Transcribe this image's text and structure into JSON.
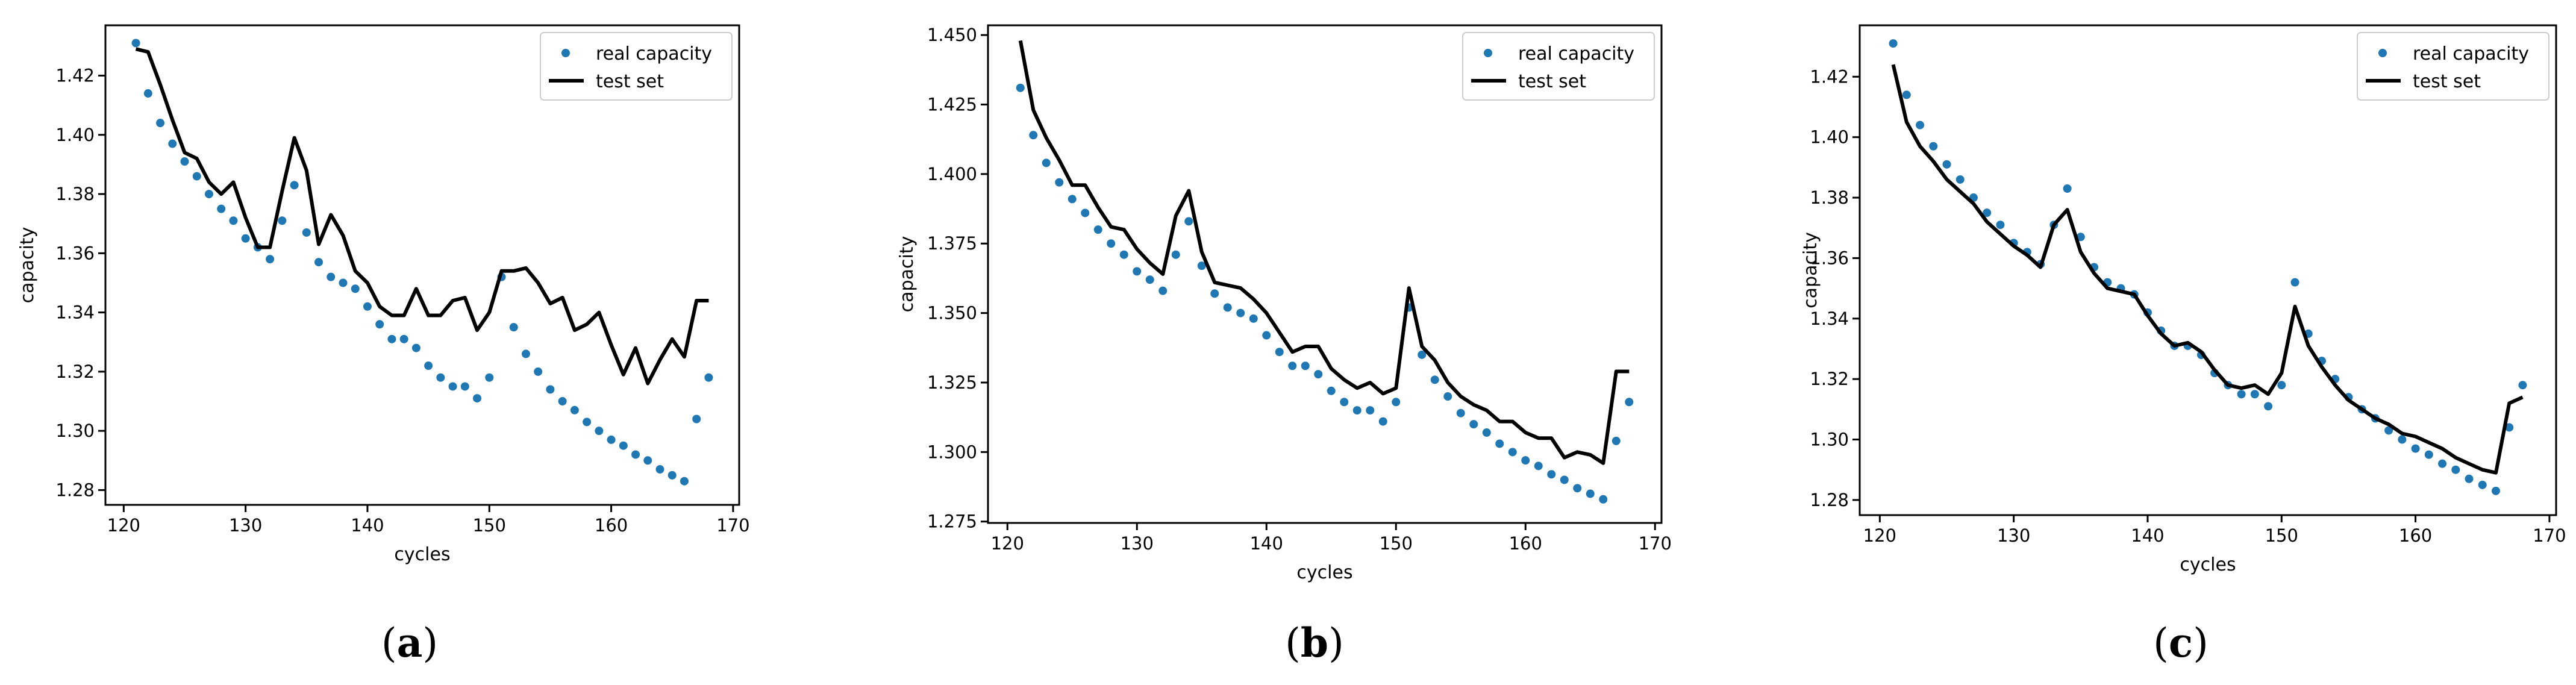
{
  "chart_data": [
    {
      "type": "scatter+line",
      "panel_label": "a",
      "xlabel": "cycles",
      "ylabel": "capacity",
      "xlim": [
        118.5,
        170.5
      ],
      "ylim": [
        1.275,
        1.437
      ],
      "xticks": [
        120,
        130,
        140,
        150,
        160,
        170
      ],
      "yticks": [
        1.28,
        1.3,
        1.32,
        1.34,
        1.36,
        1.38,
        1.4,
        1.42
      ],
      "ytick_labels": [
        "1.28",
        "1.30",
        "1.32",
        "1.34",
        "1.36",
        "1.38",
        "1.40",
        "1.42"
      ],
      "legend": {
        "placement": "top-right",
        "entries": [
          "real capacity",
          "test set"
        ]
      },
      "series": [
        {
          "name": "real capacity",
          "style": "dots",
          "color": "#1f77b4",
          "x": [
            121,
            122,
            123,
            124,
            125,
            126,
            127,
            128,
            129,
            130,
            131,
            132,
            133,
            134,
            135,
            136,
            137,
            138,
            139,
            140,
            141,
            142,
            143,
            144,
            145,
            146,
            147,
            148,
            149,
            150,
            151,
            152,
            153,
            154,
            155,
            156,
            157,
            158,
            159,
            160,
            161,
            162,
            163,
            164,
            165,
            166,
            167,
            168
          ],
          "values": [
            1.431,
            1.414,
            1.404,
            1.397,
            1.391,
            1.386,
            1.38,
            1.375,
            1.371,
            1.365,
            1.362,
            1.358,
            1.371,
            1.383,
            1.367,
            1.357,
            1.352,
            1.35,
            1.348,
            1.342,
            1.336,
            1.331,
            1.331,
            1.328,
            1.322,
            1.318,
            1.315,
            1.315,
            1.311,
            1.318,
            1.352,
            1.335,
            1.326,
            1.32,
            1.314,
            1.31,
            1.307,
            1.303,
            1.3,
            1.297,
            1.295,
            1.292,
            1.29,
            1.287,
            1.285,
            1.283,
            1.304,
            1.318
          ]
        },
        {
          "name": "test set",
          "style": "line",
          "color": "#000000",
          "x": [
            121,
            122,
            123,
            124,
            125,
            126,
            127,
            128,
            129,
            130,
            131,
            132,
            133,
            134,
            135,
            136,
            137,
            138,
            139,
            140,
            141,
            142,
            143,
            144,
            145,
            146,
            147,
            148,
            149,
            150,
            151,
            152,
            153,
            154,
            155,
            156,
            157,
            158,
            159,
            160,
            161,
            162,
            163,
            164,
            165,
            166,
            167,
            168
          ],
          "values": [
            1.429,
            1.428,
            1.417,
            1.405,
            1.394,
            1.392,
            1.384,
            1.38,
            1.384,
            1.372,
            1.362,
            1.362,
            1.381,
            1.399,
            1.388,
            1.363,
            1.373,
            1.366,
            1.354,
            1.35,
            1.342,
            1.339,
            1.339,
            1.348,
            1.339,
            1.339,
            1.344,
            1.345,
            1.334,
            1.34,
            1.354,
            1.354,
            1.355,
            1.35,
            1.343,
            1.345,
            1.334,
            1.336,
            1.34,
            1.329,
            1.319,
            1.328,
            1.316,
            1.324,
            1.331,
            1.325,
            1.344,
            1.344
          ]
        }
      ]
    },
    {
      "type": "scatter+line",
      "panel_label": "b",
      "xlabel": "cycles",
      "ylabel": "capacity",
      "xlim": [
        118.5,
        170.5
      ],
      "ylim": [
        1.2745,
        1.4535
      ],
      "xticks": [
        120,
        130,
        140,
        150,
        160,
        170
      ],
      "yticks": [
        1.275,
        1.3,
        1.325,
        1.35,
        1.375,
        1.4,
        1.425,
        1.45
      ],
      "ytick_labels": [
        "1.275",
        "1.300",
        "1.325",
        "1.350",
        "1.375",
        "1.400",
        "1.425",
        "1.450"
      ],
      "legend": {
        "placement": "top-right",
        "entries": [
          "real capacity",
          "test set"
        ]
      },
      "series": [
        {
          "name": "real capacity",
          "style": "dots",
          "color": "#1f77b4",
          "x": [
            121,
            122,
            123,
            124,
            125,
            126,
            127,
            128,
            129,
            130,
            131,
            132,
            133,
            134,
            135,
            136,
            137,
            138,
            139,
            140,
            141,
            142,
            143,
            144,
            145,
            146,
            147,
            148,
            149,
            150,
            151,
            152,
            153,
            154,
            155,
            156,
            157,
            158,
            159,
            160,
            161,
            162,
            163,
            164,
            165,
            166,
            167,
            168
          ],
          "values": [
            1.431,
            1.414,
            1.404,
            1.397,
            1.391,
            1.386,
            1.38,
            1.375,
            1.371,
            1.365,
            1.362,
            1.358,
            1.371,
            1.383,
            1.367,
            1.357,
            1.352,
            1.35,
            1.348,
            1.342,
            1.336,
            1.331,
            1.331,
            1.328,
            1.322,
            1.318,
            1.315,
            1.315,
            1.311,
            1.318,
            1.352,
            1.335,
            1.326,
            1.32,
            1.314,
            1.31,
            1.307,
            1.303,
            1.3,
            1.297,
            1.295,
            1.292,
            1.29,
            1.287,
            1.285,
            1.283,
            1.304,
            1.318
          ]
        },
        {
          "name": "test set",
          "style": "line",
          "color": "#000000",
          "x": [
            121,
            122,
            123,
            124,
            125,
            126,
            127,
            128,
            129,
            130,
            131,
            132,
            133,
            134,
            135,
            136,
            137,
            138,
            139,
            140,
            141,
            142,
            143,
            144,
            145,
            146,
            147,
            148,
            149,
            150,
            151,
            152,
            153,
            154,
            155,
            156,
            157,
            158,
            159,
            160,
            161,
            162,
            163,
            164,
            165,
            166,
            167,
            168
          ],
          "values": [
            1.448,
            1.423,
            1.413,
            1.405,
            1.396,
            1.396,
            1.388,
            1.381,
            1.38,
            1.373,
            1.368,
            1.364,
            1.385,
            1.394,
            1.372,
            1.361,
            1.36,
            1.359,
            1.355,
            1.35,
            1.343,
            1.336,
            1.338,
            1.338,
            1.33,
            1.326,
            1.323,
            1.325,
            1.321,
            1.323,
            1.359,
            1.338,
            1.333,
            1.325,
            1.32,
            1.317,
            1.315,
            1.311,
            1.311,
            1.307,
            1.305,
            1.305,
            1.298,
            1.3,
            1.299,
            1.296,
            1.329,
            1.329
          ]
        }
      ]
    },
    {
      "type": "scatter+line",
      "panel_label": "c",
      "xlabel": "cycles",
      "ylabel": "capacity",
      "xlim": [
        118.5,
        170.5
      ],
      "ylim": [
        1.275,
        1.437
      ],
      "xticks": [
        120,
        130,
        140,
        150,
        160,
        170
      ],
      "yticks": [
        1.28,
        1.3,
        1.32,
        1.34,
        1.36,
        1.38,
        1.4,
        1.42
      ],
      "ytick_labels": [
        "1.28",
        "1.30",
        "1.32",
        "1.34",
        "1.36",
        "1.38",
        "1.40",
        "1.42"
      ],
      "legend": {
        "placement": "top-right",
        "entries": [
          "real capacity",
          "test set"
        ]
      },
      "series": [
        {
          "name": "real capacity",
          "style": "dots",
          "color": "#1f77b4",
          "x": [
            121,
            122,
            123,
            124,
            125,
            126,
            127,
            128,
            129,
            130,
            131,
            132,
            133,
            134,
            135,
            136,
            137,
            138,
            139,
            140,
            141,
            142,
            143,
            144,
            145,
            146,
            147,
            148,
            149,
            150,
            151,
            152,
            153,
            154,
            155,
            156,
            157,
            158,
            159,
            160,
            161,
            162,
            163,
            164,
            165,
            166,
            167,
            168
          ],
          "values": [
            1.431,
            1.414,
            1.404,
            1.397,
            1.391,
            1.386,
            1.38,
            1.375,
            1.371,
            1.365,
            1.362,
            1.358,
            1.371,
            1.383,
            1.367,
            1.357,
            1.352,
            1.35,
            1.348,
            1.342,
            1.336,
            1.331,
            1.331,
            1.328,
            1.322,
            1.318,
            1.315,
            1.315,
            1.311,
            1.318,
            1.352,
            1.335,
            1.326,
            1.32,
            1.314,
            1.31,
            1.307,
            1.303,
            1.3,
            1.297,
            1.295,
            1.292,
            1.29,
            1.287,
            1.285,
            1.283,
            1.304,
            1.318
          ]
        },
        {
          "name": "test set",
          "style": "line",
          "color": "#000000",
          "x": [
            121,
            122,
            123,
            124,
            125,
            126,
            127,
            128,
            129,
            130,
            131,
            132,
            133,
            134,
            135,
            136,
            137,
            138,
            139,
            140,
            141,
            142,
            143,
            144,
            145,
            146,
            147,
            148,
            149,
            150,
            151,
            152,
            153,
            154,
            155,
            156,
            157,
            158,
            159,
            160,
            161,
            162,
            163,
            164,
            165,
            166,
            167,
            168
          ],
          "values": [
            1.424,
            1.405,
            1.397,
            1.392,
            1.386,
            1.382,
            1.378,
            1.372,
            1.368,
            1.364,
            1.361,
            1.357,
            1.371,
            1.376,
            1.362,
            1.355,
            1.35,
            1.349,
            1.348,
            1.341,
            1.335,
            1.331,
            1.332,
            1.329,
            1.323,
            1.318,
            1.317,
            1.318,
            1.315,
            1.322,
            1.344,
            1.331,
            1.324,
            1.318,
            1.313,
            1.31,
            1.307,
            1.305,
            1.302,
            1.301,
            1.299,
            1.297,
            1.294,
            1.292,
            1.29,
            1.289,
            1.312,
            1.314
          ]
        }
      ]
    }
  ]
}
